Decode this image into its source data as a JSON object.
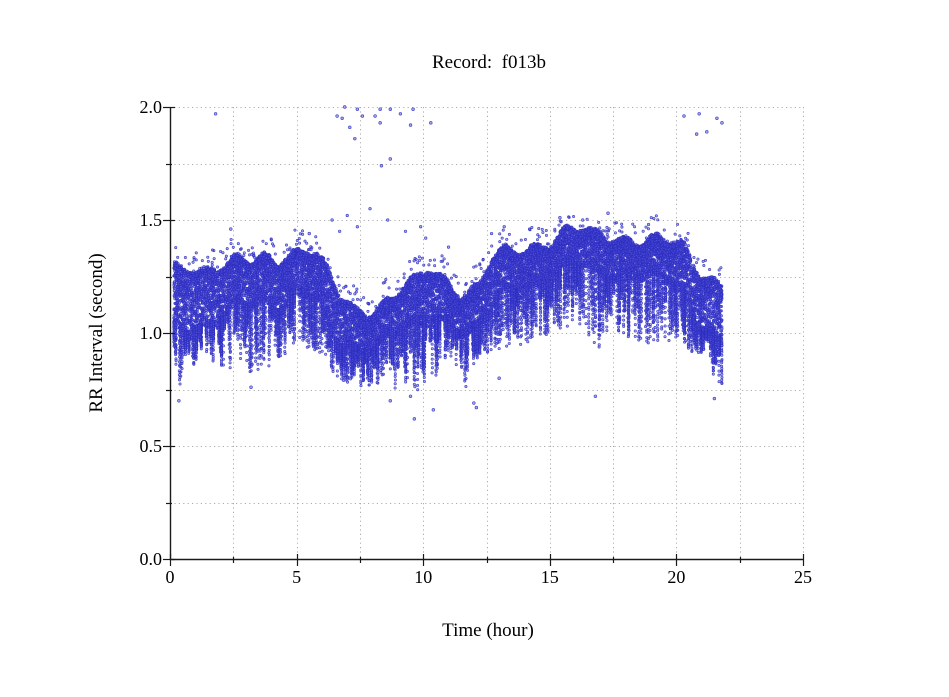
{
  "chart_data": {
    "type": "scatter",
    "title": "Record:  f013b",
    "xlabel": "Time (hour)",
    "ylabel": "RR Interval (second)",
    "xlim": [
      0,
      25
    ],
    "ylim": [
      0.0,
      2.0
    ],
    "x_major_ticks": [
      0,
      5,
      10,
      15,
      20,
      25
    ],
    "x_tick_labels": [
      "0",
      "5",
      "10",
      "15",
      "20",
      "25"
    ],
    "x_minor_step": 2.5,
    "y_major_ticks": [
      0.0,
      0.5,
      1.0,
      1.5,
      2.0
    ],
    "y_tick_labels": [
      "0.0",
      "0.5",
      "1.0",
      "1.5",
      "2.0"
    ],
    "y_minor_step": 0.25,
    "grid": "dotted gray at every major and minor tick",
    "legend": "none",
    "point_color": "#3c3ccd",
    "point_fill": "rgba(88,88,224,0.55)",
    "point_stroke": "rgba(45,45,192,0.9)",
    "grid_color": "#adadad",
    "axis_color": "#1a1a1a",
    "data_time_range_hours": [
      0.15,
      21.8
    ],
    "density_per_hour": 700,
    "streaks_per_hour": 26,
    "seed": 1337,
    "band_bins_comment": "dense RR band summarized per time bin: [t_start_hr, t_end_hr, band_low_s, band_high_s, deepest_spike_s]",
    "band_bins": [
      [
        0.15,
        0.5,
        1.0,
        1.28,
        0.72
      ],
      [
        0.5,
        1.0,
        1.0,
        1.3,
        0.8
      ],
      [
        1.0,
        1.5,
        1.02,
        1.28,
        0.82
      ],
      [
        1.5,
        2.0,
        1.05,
        1.3,
        0.85
      ],
      [
        2.0,
        2.5,
        1.08,
        1.3,
        0.8
      ],
      [
        2.5,
        3.0,
        1.1,
        1.32,
        0.82
      ],
      [
        3.0,
        3.5,
        1.1,
        1.3,
        0.78
      ],
      [
        3.5,
        4.0,
        1.12,
        1.33,
        0.8
      ],
      [
        4.0,
        4.5,
        1.1,
        1.33,
        0.85
      ],
      [
        4.5,
        5.0,
        1.15,
        1.35,
        0.88
      ],
      [
        5.0,
        5.5,
        1.18,
        1.38,
        0.9
      ],
      [
        5.5,
        6.0,
        1.15,
        1.35,
        0.88
      ],
      [
        6.0,
        6.5,
        1.0,
        1.25,
        0.82
      ],
      [
        6.5,
        7.0,
        0.92,
        1.15,
        0.78
      ],
      [
        7.0,
        7.5,
        0.9,
        1.1,
        0.75
      ],
      [
        7.5,
        8.0,
        0.92,
        1.1,
        0.74
      ],
      [
        8.0,
        8.5,
        0.95,
        1.12,
        0.72
      ],
      [
        8.5,
        9.0,
        0.98,
        1.15,
        0.7
      ],
      [
        9.0,
        9.5,
        1.0,
        1.2,
        0.75
      ],
      [
        9.5,
        10.0,
        1.0,
        1.22,
        0.7
      ],
      [
        10.0,
        10.5,
        1.05,
        1.28,
        0.75
      ],
      [
        10.5,
        11.0,
        1.05,
        1.25,
        0.8
      ],
      [
        11.0,
        11.5,
        1.02,
        1.2,
        0.85
      ],
      [
        11.5,
        12.0,
        1.0,
        1.18,
        0.72
      ],
      [
        12.0,
        12.4,
        1.0,
        1.2,
        0.85
      ],
      [
        12.4,
        13.0,
        1.1,
        1.32,
        0.88
      ],
      [
        13.0,
        13.5,
        1.15,
        1.35,
        0.9
      ],
      [
        13.5,
        14.0,
        1.18,
        1.36,
        0.92
      ],
      [
        14.0,
        14.5,
        1.2,
        1.38,
        0.92
      ],
      [
        14.5,
        15.0,
        1.22,
        1.4,
        0.95
      ],
      [
        15.0,
        15.5,
        1.25,
        1.42,
        0.95
      ],
      [
        15.5,
        16.0,
        1.28,
        1.45,
        1.0
      ],
      [
        16.0,
        16.5,
        1.28,
        1.45,
        0.98
      ],
      [
        16.5,
        17.0,
        1.25,
        1.43,
        0.8
      ],
      [
        17.0,
        17.5,
        1.25,
        1.43,
        0.95
      ],
      [
        17.5,
        18.0,
        1.25,
        1.42,
        0.95
      ],
      [
        18.0,
        18.5,
        1.25,
        1.42,
        0.92
      ],
      [
        18.5,
        19.0,
        1.25,
        1.4,
        0.9
      ],
      [
        19.0,
        19.5,
        1.22,
        1.4,
        0.9
      ],
      [
        19.5,
        20.0,
        1.22,
        1.4,
        0.88
      ],
      [
        20.0,
        20.5,
        1.15,
        1.38,
        0.85
      ],
      [
        20.5,
        21.0,
        1.05,
        1.3,
        0.9
      ],
      [
        21.0,
        21.5,
        1.0,
        1.25,
        0.88
      ],
      [
        21.5,
        21.8,
        0.95,
        1.22,
        0.71
      ]
    ],
    "outliers_high": [
      [
        1.8,
        1.97
      ],
      [
        2.4,
        1.46
      ],
      [
        5.5,
        1.44
      ],
      [
        6.6,
        1.96
      ],
      [
        6.8,
        1.95
      ],
      [
        6.9,
        2.0
      ],
      [
        7.1,
        1.91
      ],
      [
        7.3,
        1.86
      ],
      [
        7.4,
        1.99
      ],
      [
        7.6,
        1.96
      ],
      [
        8.1,
        1.96
      ],
      [
        8.3,
        1.99
      ],
      [
        8.3,
        1.93
      ],
      [
        8.35,
        1.74
      ],
      [
        8.7,
        1.99
      ],
      [
        8.7,
        1.77
      ],
      [
        9.1,
        1.97
      ],
      [
        9.5,
        1.92
      ],
      [
        9.6,
        1.99
      ],
      [
        10.3,
        1.93
      ],
      [
        15.4,
        1.51
      ],
      [
        17.3,
        1.53
      ],
      [
        20.3,
        1.96
      ],
      [
        20.8,
        1.88
      ],
      [
        20.9,
        1.97
      ],
      [
        21.2,
        1.89
      ],
      [
        21.6,
        1.95
      ],
      [
        21.8,
        1.93
      ]
    ],
    "outliers_low": [
      [
        0.35,
        0.7
      ],
      [
        3.2,
        0.76
      ],
      [
        8.7,
        0.7
      ],
      [
        9.5,
        0.72
      ],
      [
        9.65,
        0.62
      ],
      [
        10.4,
        0.66
      ],
      [
        12.0,
        0.69
      ],
      [
        12.1,
        0.67
      ],
      [
        13.0,
        0.8
      ],
      [
        16.8,
        0.72
      ],
      [
        21.5,
        0.71
      ]
    ],
    "sparse_mid": [
      [
        6.4,
        1.5
      ],
      [
        6.7,
        1.45
      ],
      [
        7.0,
        1.52
      ],
      [
        7.4,
        1.47
      ],
      [
        7.9,
        1.55
      ],
      [
        8.6,
        1.5
      ],
      [
        9.3,
        1.45
      ],
      [
        9.9,
        1.47
      ],
      [
        10.1,
        1.42
      ],
      [
        11.0,
        1.38
      ],
      [
        12.7,
        1.44
      ],
      [
        13.2,
        1.47
      ],
      [
        14.2,
        1.46
      ],
      [
        16.3,
        1.5
      ],
      [
        18.9,
        1.48
      ]
    ]
  }
}
